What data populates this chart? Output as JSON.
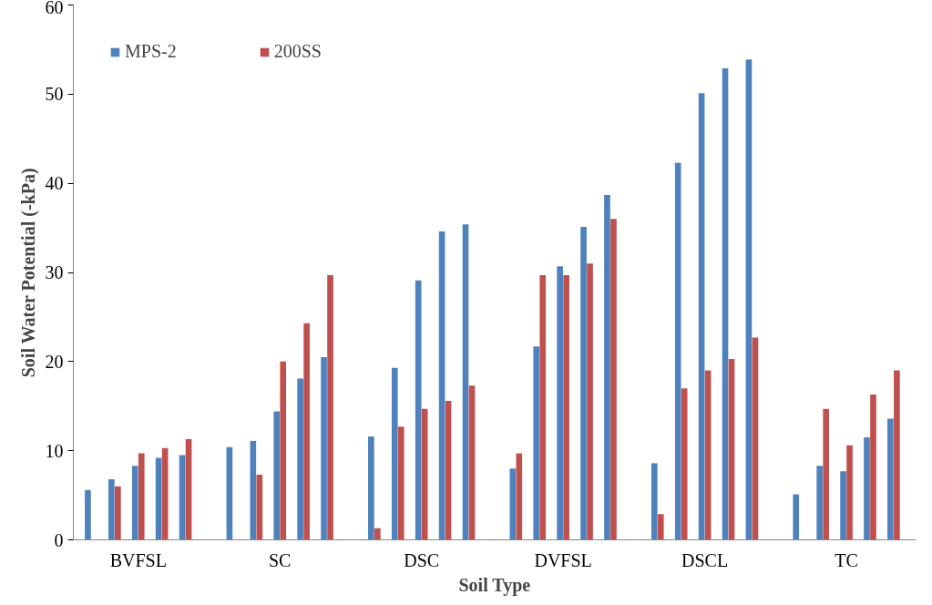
{
  "chart_data": {
    "type": "bar",
    "xlabel": "Soil Type",
    "ylabel": "Soil Water Potential (-kPa)",
    "categories": [
      null,
      null,
      "BVFSL",
      null,
      null,
      null,
      null,
      null,
      "SC",
      null,
      null,
      null,
      null,
      null,
      "DSC",
      null,
      null,
      null,
      null,
      null,
      "DVFSL",
      null,
      null,
      null,
      null,
      null,
      "DSCL",
      null,
      null,
      null,
      null,
      null,
      "TC",
      null,
      null
    ],
    "series": [
      {
        "name": "MPS-2",
        "color": "#4f81bd",
        "values": [
          5.6,
          6.8,
          8.3,
          9.2,
          9.5,
          null,
          10.4,
          11.1,
          14.4,
          18.1,
          20.5,
          null,
          11.6,
          19.3,
          29.1,
          34.6,
          35.4,
          null,
          8.0,
          21.7,
          30.7,
          35.1,
          38.7,
          null,
          8.6,
          42.3,
          50.1,
          52.9,
          53.9,
          null,
          5.1,
          8.3,
          7.7,
          11.5,
          13.6
        ]
      },
      {
        "name": "200SS",
        "color": "#c0504d",
        "values": [
          null,
          6.0,
          9.7,
          10.3,
          11.3,
          null,
          null,
          7.3,
          20.0,
          24.3,
          29.7,
          null,
          1.3,
          12.7,
          14.7,
          15.6,
          17.3,
          null,
          9.7,
          29.7,
          29.7,
          31.0,
          36.0,
          null,
          2.9,
          17.0,
          19.0,
          20.3,
          22.7,
          null,
          null,
          14.7,
          10.6,
          16.3,
          19.0
        ]
      }
    ],
    "ylim": [
      0,
      60
    ],
    "yticks": [
      0,
      10,
      20,
      30,
      40,
      50,
      60
    ],
    "legend": "top left",
    "grid": false
  }
}
